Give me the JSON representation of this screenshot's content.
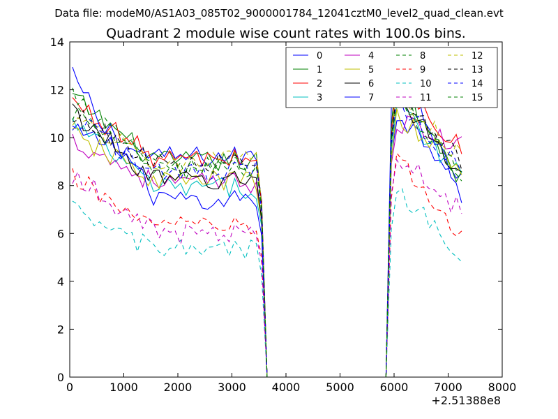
{
  "chart_data": {
    "type": "line",
    "suptitle": "Data file: modeM0/AS1A03_085T02_9000001784_12041cztM0_level2_quad_clean.evt",
    "title": "Quadrant 2 module wise count rates with 100.0s bins.",
    "xlabel": "",
    "ylabel": "",
    "x_offset_label": "+2.51388e8",
    "xlim": [
      0,
      8000
    ],
    "ylim": [
      0,
      14
    ],
    "xticks": [
      0,
      1000,
      2000,
      3000,
      4000,
      5000,
      6000,
      7000,
      8000
    ],
    "yticks": [
      0,
      2,
      4,
      6,
      8,
      10,
      12,
      14
    ],
    "legend_position": "top-right",
    "legend_columns": 4,
    "gap": {
      "end_of_first_segment": 3550,
      "drop_to_zero": 3650,
      "zero_until": 5850,
      "rise_start": 5950
    },
    "x": [
      50,
      150,
      250,
      350,
      450,
      550,
      650,
      750,
      850,
      950,
      1050,
      1150,
      1250,
      1350,
      1450,
      1550,
      1650,
      1750,
      1850,
      1950,
      2050,
      2150,
      2250,
      2350,
      2450,
      2550,
      2650,
      2750,
      2850,
      2950,
      3050,
      3150,
      3250,
      3350,
      3450,
      3550,
      3650,
      3750,
      3850,
      3950,
      4050,
      4150,
      4250,
      4350,
      4450,
      4550,
      4650,
      4750,
      4850,
      4950,
      5050,
      5150,
      5250,
      5350,
      5450,
      5550,
      5650,
      5750,
      5850,
      5950,
      6050,
      6150,
      6250,
      6350,
      6450,
      6550,
      6650,
      6750,
      6850,
      6950,
      7050,
      7150,
      7250
    ],
    "series": [
      {
        "name": "0",
        "color": "#0000ff",
        "dashed": false,
        "base": 9.2,
        "start": 10.2,
        "end2": 8.4
      },
      {
        "name": "1",
        "color": "#008000",
        "dashed": false,
        "base": 9.0,
        "start": 11.7,
        "end2": 8.2
      },
      {
        "name": "2",
        "color": "#ff0000",
        "dashed": false,
        "base": 9.1,
        "start": 11.5,
        "end2": 9.5
      },
      {
        "name": "3",
        "color": "#00bfbf",
        "dashed": false,
        "base": 7.9,
        "start": 10.6,
        "end2": 8.4
      },
      {
        "name": "4",
        "color": "#bf00bf",
        "dashed": false,
        "base": 8.1,
        "start": 9.9,
        "end2": 9.6
      },
      {
        "name": "5",
        "color": "#bfbf00",
        "dashed": false,
        "base": 8.2,
        "start": 10.1,
        "end2": 8.6
      },
      {
        "name": "6",
        "color": "#000000",
        "dashed": false,
        "base": 8.2,
        "start": 11.1,
        "end2": 8.4
      },
      {
        "name": "7",
        "color": "#0000ff",
        "dashed": false,
        "base": 7.4,
        "start": 12.6,
        "end2": 7.7
      },
      {
        "name": "8",
        "color": "#008000",
        "dashed": true,
        "base": 8.6,
        "start": 11.7,
        "end2": 8.3
      },
      {
        "name": "9",
        "color": "#ff0000",
        "dashed": true,
        "base": 6.3,
        "start": 8.3,
        "end2": 5.9
      },
      {
        "name": "10",
        "color": "#00bfbf",
        "dashed": true,
        "base": 5.3,
        "start": 6.9,
        "end2": 5.2
      },
      {
        "name": "11",
        "color": "#bf00bf",
        "dashed": true,
        "base": 6.0,
        "start": 8.5,
        "end2": 6.9
      },
      {
        "name": "12",
        "color": "#bfbf00",
        "dashed": true,
        "base": 9.0,
        "start": 10.9,
        "end2": 9.2
      },
      {
        "name": "13",
        "color": "#000000",
        "dashed": true,
        "base": 8.9,
        "start": 11.0,
        "end2": 9.0
      },
      {
        "name": "14",
        "color": "#0000ff",
        "dashed": true,
        "base": 8.6,
        "start": 10.8,
        "end2": 8.6
      },
      {
        "name": "15",
        "color": "#008000",
        "dashed": true,
        "base": 8.8,
        "start": 11.0,
        "end2": 8.3
      }
    ]
  }
}
